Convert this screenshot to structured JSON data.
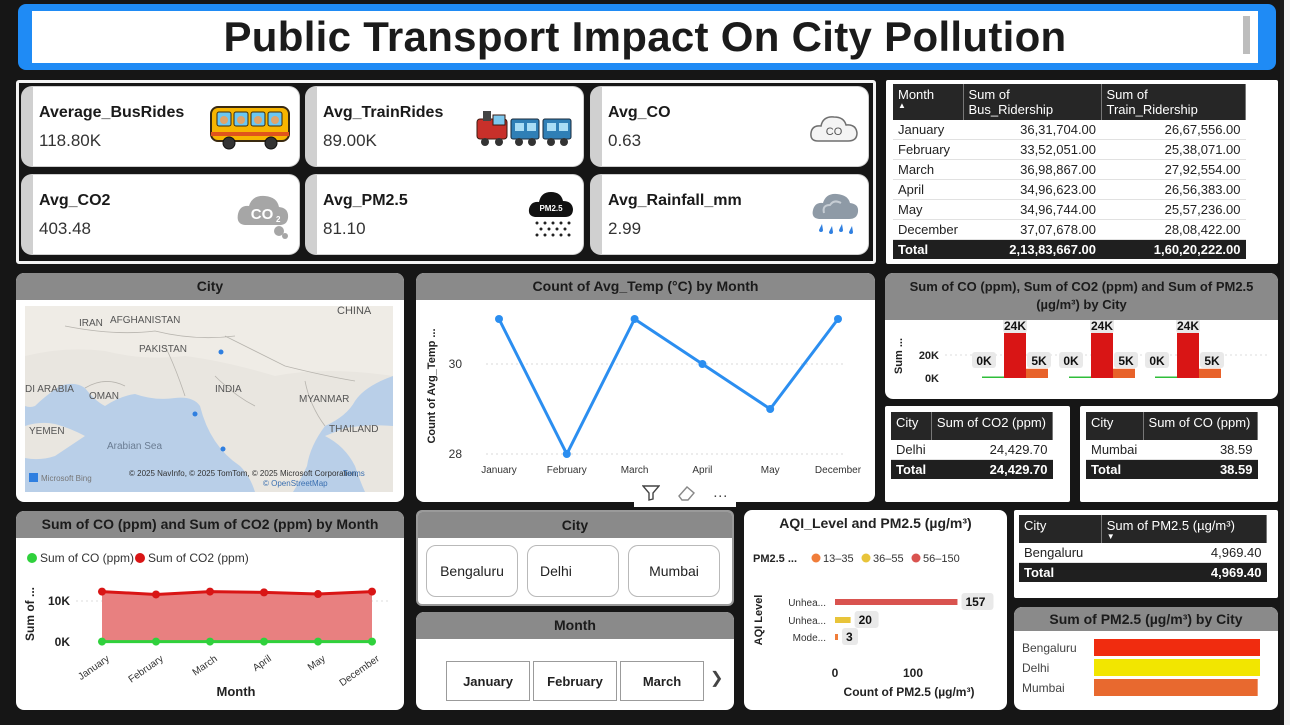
{
  "title": "Public Transport Impact On City Pollution",
  "kpis": [
    {
      "label": "Average_BusRides",
      "value": "118.80K",
      "icon": "bus-icon"
    },
    {
      "label": "Avg_TrainRides",
      "value": "89.00K",
      "icon": "train-icon"
    },
    {
      "label": "Avg_CO",
      "value": "0.63",
      "icon": "co-cloud-icon"
    },
    {
      "label": "Avg_CO2",
      "value": "403.48",
      "icon": "co2-cloud-icon"
    },
    {
      "label": "Avg_PM2.5",
      "value": "81.10",
      "icon": "pm25-cloud-icon"
    },
    {
      "label": "Avg_Rainfall_mm",
      "value": "2.99",
      "icon": "rain-cloud-icon"
    }
  ],
  "ridership_table": {
    "headers": [
      "Month",
      "Sum of Bus_Ridership",
      "Sum of Train_Ridership"
    ],
    "rows": [
      [
        "January",
        "36,31,704.00",
        "26,67,556.00"
      ],
      [
        "February",
        "33,52,051.00",
        "25,38,071.00"
      ],
      [
        "March",
        "36,98,867.00",
        "27,92,554.00"
      ],
      [
        "April",
        "34,96,623.00",
        "26,56,383.00"
      ],
      [
        "May",
        "34,96,744.00",
        "25,57,236.00"
      ],
      [
        "December",
        "37,07,678.00",
        "28,08,422.00"
      ]
    ],
    "total": [
      "Total",
      "2,13,83,667.00",
      "1,60,20,222.00"
    ]
  },
  "map": {
    "title": "City",
    "labels": [
      "CHINA",
      "IRAN",
      "AFGHANISTAN",
      "PAKISTAN",
      "INDIA",
      "MYANMAR",
      "DI ARABIA",
      "OMAN",
      "THAILAND",
      "YEMEN",
      "Arabian Sea"
    ],
    "attribution": "© 2025 NavInfo, © 2025 TomTom, © 2025 Microsoft Corporation,",
    "terms": "Terms",
    "osm": "© OpenStreetMap",
    "bing": "Microsoft Bing"
  },
  "line_chart": {
    "title": "Count of Avg_Temp (°C) by Month",
    "ylabel": "Count of Avg_Temp ...",
    "categories": [
      "January",
      "February",
      "March",
      "April",
      "May",
      "December"
    ],
    "values": [
      31,
      28,
      31,
      30,
      29,
      31
    ],
    "yticks": [
      "30",
      "28"
    ],
    "color": "#2b8ef0"
  },
  "co_co2_bar": {
    "title": "Sum of CO (ppm), Sum of CO2 (ppm) and Sum of PM2.5 (µg/m³) by City",
    "ylabel": "Sum ...",
    "yticks": [
      "20K",
      "0K"
    ],
    "groups": [
      {
        "labels": [
          "0K",
          "24K",
          "5K"
        ],
        "values": [
          0.04,
          24.4,
          5.0
        ]
      },
      {
        "labels": [
          "0K",
          "24K",
          "5K"
        ],
        "values": [
          0.04,
          24.4,
          5.0
        ]
      },
      {
        "labels": [
          "0K",
          "24K",
          "5K"
        ],
        "values": [
          0.04,
          24.4,
          5.0
        ]
      }
    ],
    "colors": [
      "#2fbe3a",
      "#d91515",
      "#e8622a"
    ]
  },
  "co2_table": {
    "headers": [
      "City",
      "Sum of CO2 (ppm)"
    ],
    "rows": [
      [
        "Delhi",
        "24,429.70"
      ]
    ],
    "total": [
      "Total",
      "24,429.70"
    ]
  },
  "co_table": {
    "headers": [
      "City",
      "Sum of CO (ppm)"
    ],
    "rows": [
      [
        "Mumbai",
        "38.59"
      ]
    ],
    "total": [
      "Total",
      "38.59"
    ]
  },
  "area_chart": {
    "title": "Sum of CO (ppm) and Sum of CO2 (ppm) by Month",
    "legend": [
      "Sum of CO (ppm)",
      "Sum of CO2 (ppm)"
    ],
    "legend_colors": [
      "#2fd13c",
      "#d91515"
    ],
    "ylabel": "Sum of ...",
    "xlabel": "Month",
    "yticks": [
      "10K",
      "0K"
    ],
    "categories": [
      "January",
      "February",
      "March",
      "April",
      "May",
      "December"
    ],
    "co2_values": [
      12.3,
      11.6,
      12.3,
      12.1,
      11.7,
      12.3
    ],
    "co_values": [
      0.1,
      0.1,
      0.1,
      0.1,
      0.1,
      0.1
    ]
  },
  "city_slicer": {
    "title": "City",
    "options": [
      "Bengaluru",
      "Delhi",
      "Mumbai"
    ]
  },
  "month_slicer": {
    "title": "Month",
    "options": [
      "January",
      "February",
      "March"
    ],
    "next": "❯"
  },
  "visual_toolbar": {
    "filter": "⛉",
    "more": "···"
  },
  "aqi_chart": {
    "title": "AQI_Level and PM2.5 (µg/m³)",
    "legend_title": "PM2.5 ...",
    "legend": [
      "13–35",
      "36–55",
      "56–150"
    ],
    "legend_colors": [
      "#f07d3a",
      "#e8c43a",
      "#d9534f"
    ],
    "ylabel": "AQI Level",
    "xlabel": "Count of PM2.5 (µg/m³)",
    "categories": [
      "Unhea...",
      "Unhea...",
      "Mode..."
    ],
    "values": [
      157,
      20,
      3
    ],
    "xticks": [
      "0",
      "100"
    ]
  },
  "pm_table": {
    "headers": [
      "City",
      "Sum of PM2.5 (µg/m³)"
    ],
    "rows": [
      [
        "Bengaluru",
        "4,969.40"
      ]
    ],
    "total": [
      "Total",
      "4,969.40"
    ]
  },
  "pm_city_chart": {
    "title": "Sum of PM2.5 (µg/m³) by City",
    "categories": [
      "Bengaluru",
      "Delhi",
      "Mumbai"
    ],
    "values": [
      4969.4,
      4969.4,
      4900
    ],
    "colors": [
      "#f02c0f",
      "#f2e600",
      "#e8692f"
    ]
  }
}
